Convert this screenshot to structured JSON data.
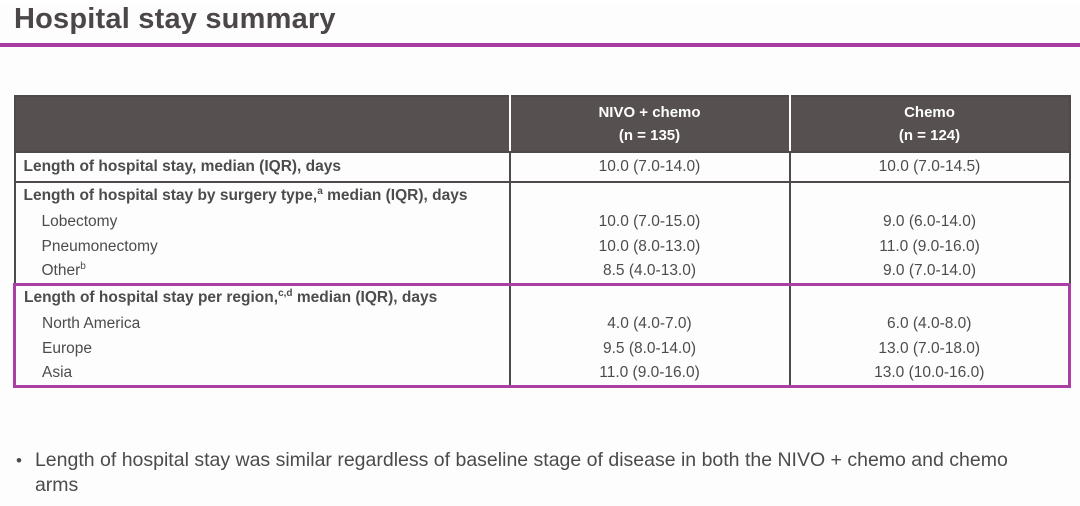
{
  "title": "Hospital stay summary",
  "colors": {
    "accent_magenta": "#a83ba4",
    "header_bg": "#575050",
    "table_border": "#4f4a4a",
    "text": "#4b4b4b"
  },
  "table": {
    "header": {
      "nivo": {
        "line1": "NIVO + chemo",
        "line2": "(n = 135)"
      },
      "chemo": {
        "line1": "Chemo",
        "line2": "(n = 124)"
      }
    },
    "overall": {
      "label": "Length of hospital stay, median (IQR), days",
      "nivo": "10.0 (7.0-14.0)",
      "chemo": "10.0 (7.0-14.5)"
    },
    "surgery": {
      "label_pre": "Length of hospital stay by surgery type,",
      "label_sup": "a",
      "label_post": " median (IQR), days",
      "rows": [
        {
          "label": "Lobectomy",
          "sup": "",
          "nivo": "10.0 (7.0-15.0)",
          "chemo": "9.0 (6.0-14.0)"
        },
        {
          "label": "Pneumonectomy",
          "sup": "",
          "nivo": "10.0 (8.0-13.0)",
          "chemo": "11.0 (9.0-16.0)"
        },
        {
          "label": "Other",
          "sup": "b",
          "nivo": "8.5 (4.0-13.0)",
          "chemo": "9.0 (7.0-14.0)"
        }
      ]
    },
    "region": {
      "label_pre": "Length of hospital stay per region,",
      "label_sup": "c,d",
      "label_post": " median (IQR), days",
      "rows": [
        {
          "label": "North America",
          "nivo": "4.0 (4.0-7.0)",
          "chemo": "6.0 (4.0-8.0)"
        },
        {
          "label": "Europe",
          "nivo": "9.5 (8.0-14.0)",
          "chemo": "13.0 (7.0-18.0)"
        },
        {
          "label": "Asia",
          "nivo": "11.0 (9.0-16.0)",
          "chemo": "13.0 (10.0-16.0)"
        }
      ]
    }
  },
  "bullet": {
    "marker": "•",
    "text": "Length of hospital stay was similar regardless of baseline stage of disease in both the NIVO + chemo and chemo arms"
  }
}
